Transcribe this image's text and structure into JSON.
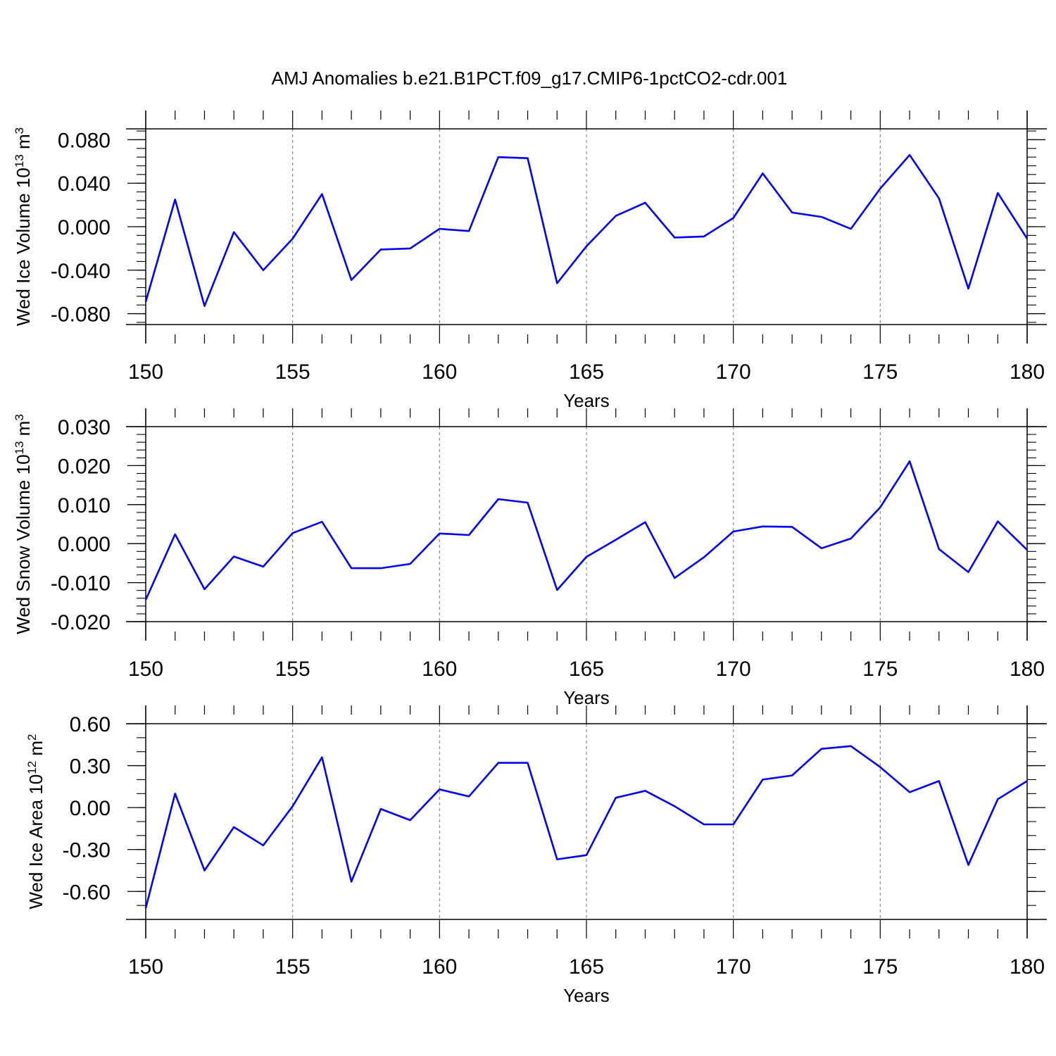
{
  "figure": {
    "title": "AMJ Anomalies b.e21.B1PCT.f09_g17.CMIP6-1pctCO2-cdr.001"
  },
  "chart_data": [
    {
      "type": "line",
      "xlabel": "Years",
      "ylabel": "Wed Ice Volume 10",
      "ylabel_exp": "13",
      "ylabel_unit": " m",
      "ylabel_unit_exp": "3",
      "xlim": [
        150,
        180
      ],
      "ylim": [
        -0.09,
        0.09
      ],
      "x_ticks": [
        "150",
        "155",
        "160",
        "165",
        "170",
        "175",
        "180"
      ],
      "y_ticks": [
        0.08,
        0.04,
        0.0,
        -0.04,
        -0.08
      ],
      "y_tick_labels": [
        "0.080",
        "0.040",
        "0.000",
        "-0.040",
        "-0.080"
      ],
      "y_minor_step": 0.008,
      "grid": "vertical dashed at major x ticks",
      "line_color": "#0000ff",
      "x": [
        150,
        151,
        152,
        153,
        154,
        155,
        156,
        157,
        158,
        159,
        160,
        161,
        162,
        163,
        164,
        165,
        166,
        167,
        168,
        169,
        170,
        171,
        172,
        173,
        174,
        175,
        176,
        177,
        178,
        179,
        180
      ],
      "values": [
        -0.069,
        0.025,
        -0.073,
        -0.005,
        -0.04,
        -0.011,
        0.03,
        -0.049,
        -0.021,
        -0.02,
        -0.002,
        -0.004,
        0.064,
        0.063,
        -0.052,
        -0.018,
        0.01,
        0.022,
        -0.01,
        -0.009,
        0.008,
        0.049,
        0.013,
        0.009,
        -0.002,
        0.035,
        0.066,
        0.026,
        -0.057,
        0.031,
        -0.011
      ]
    },
    {
      "type": "line",
      "xlabel": "Years",
      "ylabel": "Wed Snow Volume 10",
      "ylabel_exp": "13",
      "ylabel_unit": " m",
      "ylabel_unit_exp": "3",
      "xlim": [
        150,
        180
      ],
      "ylim": [
        -0.02,
        0.03
      ],
      "x_ticks": [
        "150",
        "155",
        "160",
        "165",
        "170",
        "175",
        "180"
      ],
      "y_ticks": [
        0.03,
        0.02,
        0.01,
        0.0,
        -0.01,
        -0.02
      ],
      "y_tick_labels": [
        "0.030",
        "0.020",
        "0.010",
        "0.000",
        "-0.010",
        "-0.020"
      ],
      "y_minor_step": 0.002,
      "grid": "vertical dashed at major x ticks",
      "line_color": "#0000ff",
      "x": [
        150,
        151,
        152,
        153,
        154,
        155,
        156,
        157,
        158,
        159,
        160,
        161,
        162,
        163,
        164,
        165,
        166,
        167,
        168,
        169,
        170,
        171,
        172,
        173,
        174,
        175,
        176,
        177,
        178,
        179,
        180
      ],
      "values": [
        -0.0144,
        0.0024,
        -0.0117,
        -0.0033,
        -0.0059,
        0.0027,
        0.0056,
        -0.0063,
        -0.0063,
        -0.0052,
        0.0026,
        0.0022,
        0.0114,
        0.0105,
        -0.0119,
        -0.0034,
        0.001,
        0.0055,
        -0.0088,
        -0.0035,
        0.0031,
        0.0044,
        0.0043,
        -0.0012,
        0.0013,
        0.0093,
        0.0211,
        -0.0014,
        -0.0073,
        0.0057,
        -0.0016
      ]
    },
    {
      "type": "line",
      "xlabel": "Years",
      "ylabel": "Wed Ice Area 10",
      "ylabel_exp": "12",
      "ylabel_unit": " m",
      "ylabel_unit_exp": "2",
      "xlim": [
        150,
        180
      ],
      "ylim": [
        -0.8,
        0.6
      ],
      "x_ticks": [
        "150",
        "155",
        "160",
        "165",
        "170",
        "175",
        "180"
      ],
      "y_ticks": [
        0.6,
        0.3,
        0.0,
        -0.3,
        -0.6
      ],
      "y_tick_labels": [
        "0.60",
        "0.30",
        "0.00",
        "-0.30",
        "-0.60"
      ],
      "y_minor_step": 0.1,
      "grid": "vertical dashed at major x ticks",
      "line_color": "#0000ff",
      "x": [
        150,
        151,
        152,
        153,
        154,
        155,
        156,
        157,
        158,
        159,
        160,
        161,
        162,
        163,
        164,
        165,
        166,
        167,
        168,
        169,
        170,
        171,
        172,
        173,
        174,
        175,
        176,
        177,
        178,
        179,
        180
      ],
      "values": [
        -0.72,
        0.1,
        -0.45,
        -0.14,
        -0.27,
        0.01,
        0.36,
        -0.53,
        -0.01,
        -0.09,
        0.13,
        0.08,
        0.32,
        0.32,
        -0.37,
        -0.34,
        0.07,
        0.12,
        0.01,
        -0.12,
        -0.12,
        0.2,
        0.23,
        0.42,
        0.44,
        0.29,
        0.11,
        0.19,
        -0.41,
        0.06,
        0.19
      ]
    }
  ]
}
